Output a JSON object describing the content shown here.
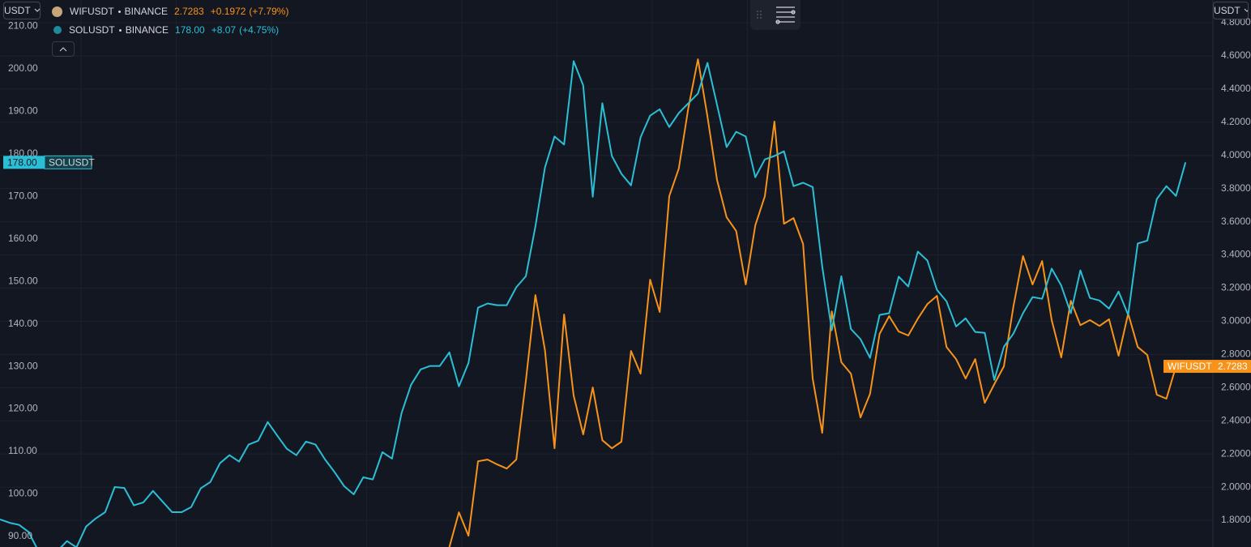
{
  "chart_data": {
    "type": "line",
    "left_currency": "USDT",
    "right_currency": "USDT",
    "ylim": [
      87.5,
      216.2
    ],
    "yticks": [
      {
        "value": 90,
        "label": "90.00"
      },
      {
        "value": 100,
        "label": "100.00"
      },
      {
        "value": 110,
        "label": "110.00"
      },
      {
        "value": 120,
        "label": "120.00"
      },
      {
        "value": 130,
        "label": "130.00"
      },
      {
        "value": 140,
        "label": "140.00"
      },
      {
        "value": 150,
        "label": "150.00"
      },
      {
        "value": 160,
        "label": "160.00"
      },
      {
        "value": 170,
        "label": "170.00"
      },
      {
        "value": 180,
        "label": "180.00"
      },
      {
        "value": 190,
        "label": "190.00"
      },
      {
        "value": 200,
        "label": "200.00"
      },
      {
        "value": 210,
        "label": "210.00"
      }
    ],
    "y2lim": [
      1.639,
      4.937
    ],
    "y2ticks": [
      {
        "value": 1.8,
        "label": "1.8000"
      },
      {
        "value": 2,
        "label": "2.0000"
      },
      {
        "value": 2.2,
        "label": "2.2000"
      },
      {
        "value": 2.4,
        "label": "2.4000"
      },
      {
        "value": 2.6,
        "label": "2.6000"
      },
      {
        "value": 2.8,
        "label": "2.8000"
      },
      {
        "value": 3,
        "label": "3.0000"
      },
      {
        "value": 3.2,
        "label": "3.2000"
      },
      {
        "value": 3.4,
        "label": "3.4000"
      },
      {
        "value": 3.6,
        "label": "3.6000"
      },
      {
        "value": 3.8,
        "label": "3.8000"
      },
      {
        "value": 4,
        "label": "4.0000"
      },
      {
        "value": 4.2,
        "label": "4.2000"
      },
      {
        "value": 4.4,
        "label": "4.4000"
      },
      {
        "value": 4.6,
        "label": "4.6000"
      },
      {
        "value": 4.8,
        "label": "4.8000"
      }
    ],
    "grid": true,
    "series": [
      {
        "name": "WIFUSDT",
        "exchange": "BINANCE",
        "last": "2.7283",
        "change": "+0.1972",
        "change_pct": "(+7.79%)",
        "color": "#f7931a",
        "axis": "y2",
        "values": [
          null,
          null,
          null,
          null,
          null,
          null,
          null,
          null,
          null,
          null,
          null,
          null,
          null,
          null,
          null,
          null,
          null,
          null,
          null,
          null,
          null,
          null,
          null,
          null,
          null,
          null,
          null,
          null,
          null,
          null,
          null,
          null,
          null,
          null,
          null,
          null,
          null,
          null,
          null,
          null,
          null,
          null,
          null,
          null,
          null,
          null,
          null,
          1.638,
          1.848,
          1.707,
          2.156,
          2.166,
          2.137,
          2.112,
          2.166,
          2.64,
          3.158,
          2.826,
          2.234,
          3.041,
          2.552,
          2.318,
          2.601,
          2.283,
          2.234,
          2.274,
          2.821,
          2.684,
          3.251,
          3.056,
          3.754,
          3.921,
          4.287,
          4.58,
          4.233,
          3.852,
          3.627,
          3.544,
          3.222,
          3.578,
          3.754,
          4.204,
          3.588,
          3.622,
          3.466,
          2.655,
          2.327,
          3.06,
          2.753,
          2.684,
          2.42,
          2.562,
          2.924,
          3.031,
          2.938,
          2.914,
          3.016,
          3.104,
          3.153,
          2.845,
          2.772,
          2.655,
          2.772,
          2.508,
          2.621,
          2.728,
          3.09,
          3.393,
          3.222,
          3.363,
          3.007,
          2.782,
          3.124,
          2.977,
          3.007,
          2.972,
          3.012,
          2.792,
          3.046,
          2.845,
          2.797,
          2.557,
          2.533,
          2.7283
        ]
      },
      {
        "name": "SOLUSDT",
        "exchange": "BINANCE",
        "last": "178.00",
        "change": "+8.07",
        "change_pct": "(+4.75%)",
        "color": "#2bbfd6",
        "axis": "y",
        "values": [
          94.0,
          93.2,
          92.7,
          91.0,
          86.6,
          84.7,
          86.5,
          88.9,
          87.4,
          92.3,
          94.2,
          95.7,
          101.6,
          101.4,
          97.3,
          98.0,
          100.7,
          98.2,
          95.7,
          95.7,
          96.9,
          101.3,
          102.8,
          107.2,
          109.1,
          107.6,
          111.6,
          112.5,
          116.9,
          113.7,
          110.6,
          109.1,
          112.3,
          111.6,
          108.1,
          105.1,
          101.8,
          99.9,
          103.9,
          103.4,
          109.8,
          108.3,
          119.0,
          125.7,
          129.3,
          130.1,
          130.1,
          133.3,
          125.3,
          130.8,
          143.8,
          144.8,
          144.4,
          144.4,
          148.6,
          151.2,
          162.9,
          176.8,
          184.1,
          182.2,
          201.8,
          196.1,
          169.9,
          191.9,
          179.5,
          175.3,
          172.6,
          183.9,
          189.0,
          190.5,
          186.3,
          189.6,
          191.9,
          194.2,
          201.4,
          191.5,
          181.6,
          185.2,
          184.1,
          174.5,
          178.7,
          179.5,
          180.6,
          172.4,
          173.2,
          172.2,
          153.5,
          138.5,
          151.2,
          138.8,
          136.4,
          132.0,
          142.1,
          142.5,
          151.1,
          148.8,
          157.0,
          154.9,
          148.0,
          145.3,
          139.4,
          141.3,
          138.1,
          137.9,
          126.8,
          134.6,
          137.7,
          142.5,
          146.3,
          145.9,
          153.0,
          149.0,
          142.5,
          152.6,
          146.1,
          145.5,
          143.6,
          147.6,
          142.1,
          158.9,
          159.6,
          169.4,
          172.4,
          170.1,
          178.0
        ]
      }
    ]
  }
}
